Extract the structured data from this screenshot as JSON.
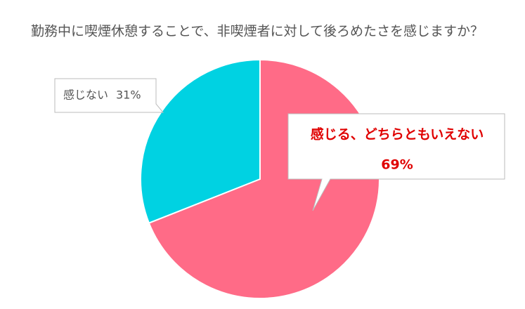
{
  "chart_data": {
    "type": "pie",
    "title": "勤務中に喫煙休憩することで、非喫煙者に対して後ろめたさを感じますか？",
    "categories": [
      "感じる、どちらともいえない",
      "感じない"
    ],
    "values": [
      69,
      31
    ],
    "value_labels": [
      "69%",
      "31%"
    ],
    "colors": [
      "#ff6b87",
      "#00d2e2"
    ]
  }
}
